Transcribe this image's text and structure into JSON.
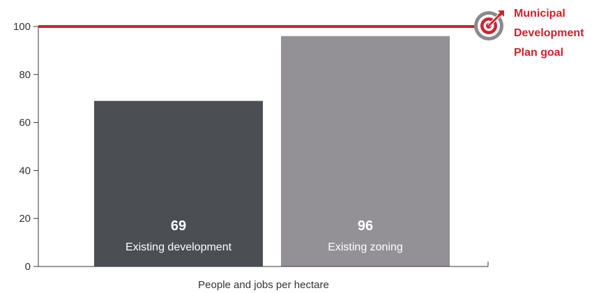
{
  "chart_data": {
    "type": "bar",
    "categories": [
      "Existing development",
      "Existing zoning"
    ],
    "values": [
      69,
      96
    ],
    "value_labels": [
      "69",
      "96"
    ],
    "bar_colors": [
      "#4b4e53",
      "#939196"
    ],
    "xlabel": "People and jobs per hectare",
    "ylabel": "",
    "ylim": [
      0,
      100
    ],
    "yticks": [
      0,
      20,
      40,
      60,
      80,
      100
    ],
    "ytick_labels": [
      "0",
      "20",
      "40",
      "60",
      "80",
      "100"
    ],
    "grid": false,
    "reference_line": {
      "value": 100,
      "color": "#d0222e",
      "label_lines": [
        "Municipal",
        "Development",
        "Plan goal"
      ]
    },
    "icons": [
      "target-arrow-icon"
    ],
    "colors": {
      "axis": "#333333",
      "accent": "#d0222e",
      "icon_ring": "#8a8a8d"
    }
  }
}
